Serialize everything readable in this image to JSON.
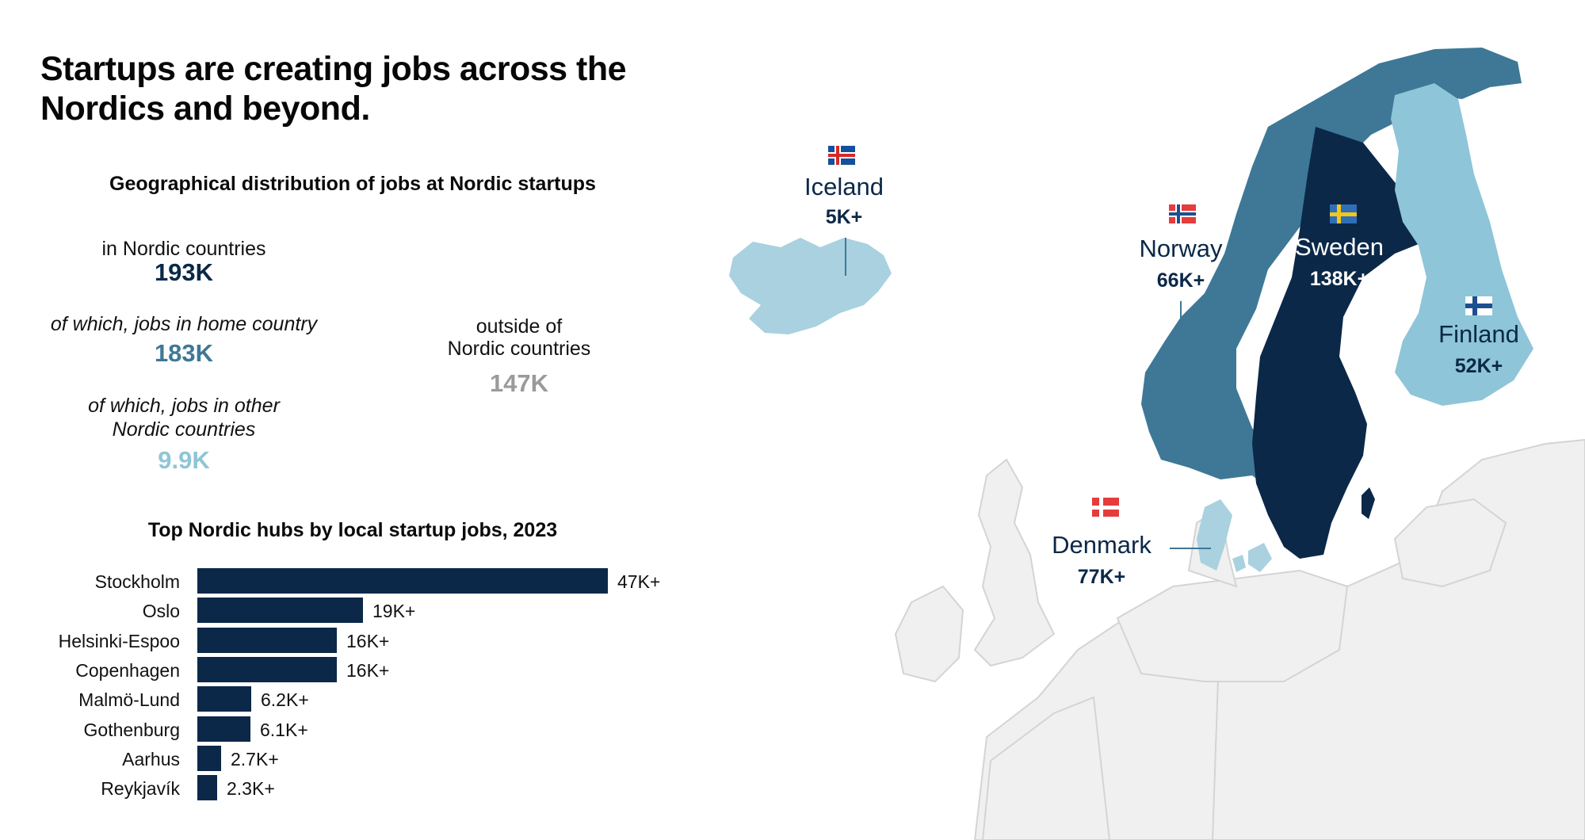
{
  "title": "Startups are creating jobs across the Nordics and beyond.",
  "distribution": {
    "heading": "Geographical distribution of jobs at Nordic startups",
    "in_nordic_label": "in Nordic countries",
    "in_nordic_value": "193K",
    "home_label": "of which, jobs in home country",
    "home_value": "183K",
    "other_label_line1": "of which, jobs in other",
    "other_label_line2": "Nordic countries",
    "other_value": "9.9K",
    "outside_label_line1": "outside of",
    "outside_label_line2": "Nordic countries",
    "outside_value": "147K"
  },
  "colors": {
    "navy": "#0b2848",
    "mid_blue": "#3e7896",
    "light_blue": "#8ec5d8",
    "grey_value": "#9a9a9a",
    "land_grey": "#f0f0f0",
    "border_grey": "#d4d4d4"
  },
  "chart_data": {
    "type": "bar",
    "orientation": "horizontal",
    "title": "Top Nordic hubs by local startup jobs, 2023",
    "categories": [
      "Stockholm",
      "Oslo",
      "Helsinki-Espoo",
      "Copenhagen",
      "Malmö-Lund",
      "Gothenburg",
      "Aarhus",
      "Reykjavík"
    ],
    "values": [
      47000,
      19000,
      16000,
      16000,
      6200,
      6100,
      2700,
      2300
    ],
    "value_labels": [
      "47K+",
      "19K+",
      "16K+",
      "16K+",
      "6.2K+",
      "6.1K+",
      "2.7K+",
      "2.3K+"
    ],
    "bar_color": "#0b2848",
    "xlim": [
      0,
      47000
    ]
  },
  "map": {
    "countries": [
      {
        "name": "Iceland",
        "value": "5K+",
        "flag": "iceland-flag"
      },
      {
        "name": "Norway",
        "value": "66K+",
        "flag": "norway-flag"
      },
      {
        "name": "Sweden",
        "value": "138K+",
        "flag": "sweden-flag"
      },
      {
        "name": "Finland",
        "value": "52K+",
        "flag": "finland-flag"
      },
      {
        "name": "Denmark",
        "value": "77K+",
        "flag": "denmark-flag"
      }
    ]
  }
}
